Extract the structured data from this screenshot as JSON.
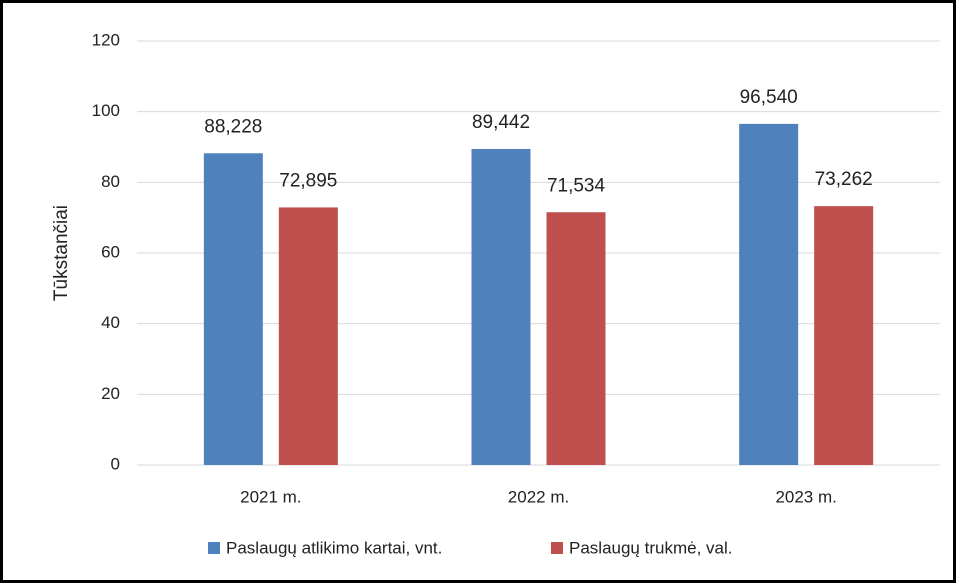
{
  "chart_data": {
    "type": "bar",
    "y_label": "Tūkstančiai",
    "categories": [
      "2021 m.",
      "2022 m.",
      "2023 m."
    ],
    "series": [
      {
        "name": "Paslaugų atlikimo kartai, vnt.",
        "color": "#4f81bd",
        "values": [
          88.228,
          89.442,
          96.54
        ],
        "value_labels": [
          "88,228",
          "89,442",
          "96,540"
        ]
      },
      {
        "name": "Paslaugų trukmė, val.",
        "color": "#c0504d",
        "values": [
          72.895,
          71.534,
          73.262
        ],
        "value_labels": [
          "72,895",
          "71,534",
          "73,262"
        ]
      }
    ],
    "ylim": [
      0,
      120
    ],
    "yticks": [
      0,
      20,
      40,
      60,
      80,
      100,
      120
    ],
    "grid": true,
    "legend": "bottom"
  }
}
